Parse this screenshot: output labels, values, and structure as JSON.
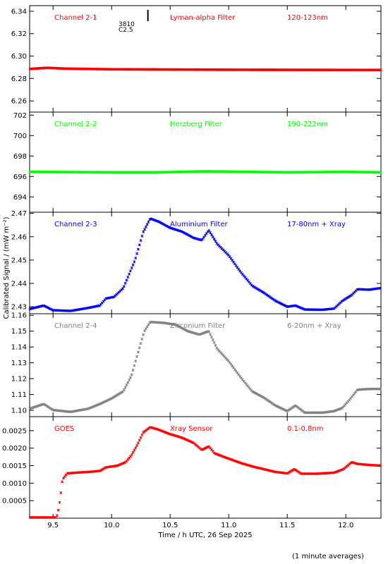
{
  "chart_data": {
    "type": "scatter",
    "ylabel": "Calibrated Signal / (mW m⁻²)",
    "xlabel": "Time / h UTC, 26 Sep 2025",
    "footnote": "(1 minute averages)",
    "xlim": [
      9.3,
      12.3
    ],
    "xticks": [
      9.5,
      10.0,
      10.5,
      11.0,
      11.5,
      12.0
    ],
    "xtick_labels": [
      "9.5",
      "10.0",
      "10.5",
      "11.0",
      "11.5",
      "12.0"
    ],
    "annotation": {
      "line1": "3810",
      "line2": "C2.5",
      "x": 10.31
    },
    "panels": [
      {
        "channel": "Channel 2-1",
        "filter": "Lyman-alpha Filter",
        "band": "120-123nm",
        "color": "#ff0000",
        "ylim": [
          6.25,
          6.345
        ],
        "yticks": [
          6.26,
          6.28,
          6.3,
          6.32,
          6.34
        ],
        "ytick_labels": [
          "6.26",
          "6.28",
          "6.30",
          "6.32",
          "6.34"
        ],
        "points": [
          [
            9.3,
            6.2885
          ],
          [
            9.45,
            6.2895
          ],
          [
            9.6,
            6.2888
          ],
          [
            10.0,
            6.2882
          ],
          [
            11.0,
            6.2878
          ],
          [
            12.3,
            6.2876
          ]
        ]
      },
      {
        "channel": "Channel 2-2",
        "filter": "Herzberg Filter",
        "band": "190-222nm",
        "color": "#00ff00",
        "ylim": [
          692.5,
          702.3
        ],
        "yticks": [
          694,
          696,
          698,
          700,
          702
        ],
        "ytick_labels": [
          "694",
          "696",
          "698",
          "700",
          "702"
        ],
        "points": [
          [
            9.3,
            696.45
          ],
          [
            10.0,
            696.4
          ],
          [
            10.4,
            696.4
          ],
          [
            10.8,
            696.5
          ],
          [
            11.5,
            696.4
          ],
          [
            12.0,
            696.45
          ],
          [
            12.3,
            696.4
          ]
        ]
      },
      {
        "channel": "Channel 2-3",
        "filter": "Aluminium Filter",
        "band": "17-80nm + Xray",
        "color": "#0000ff",
        "ylim": [
          2.427,
          2.4705
        ],
        "yticks": [
          2.43,
          2.44,
          2.45,
          2.46,
          2.47
        ],
        "ytick_labels": [
          "2.43",
          "2.44",
          "2.45",
          "2.46",
          "2.47"
        ],
        "points": [
          [
            9.3,
            2.429
          ],
          [
            9.42,
            2.4305
          ],
          [
            9.5,
            2.4285
          ],
          [
            9.65,
            2.4282
          ],
          [
            9.8,
            2.4295
          ],
          [
            9.9,
            2.4305
          ],
          [
            9.95,
            2.4335
          ],
          [
            10.02,
            2.4342
          ],
          [
            10.1,
            2.438
          ],
          [
            10.2,
            2.45
          ],
          [
            10.27,
            2.462
          ],
          [
            10.33,
            2.4678
          ],
          [
            10.4,
            2.4665
          ],
          [
            10.5,
            2.4638
          ],
          [
            10.6,
            2.4622
          ],
          [
            10.7,
            2.4595
          ],
          [
            10.77,
            2.4585
          ],
          [
            10.83,
            2.4628
          ],
          [
            10.9,
            2.457
          ],
          [
            11.0,
            2.452
          ],
          [
            11.1,
            2.445
          ],
          [
            11.2,
            2.439
          ],
          [
            11.3,
            2.436
          ],
          [
            11.4,
            2.4325
          ],
          [
            11.5,
            2.43
          ],
          [
            11.57,
            2.4305
          ],
          [
            11.65,
            2.4288
          ],
          [
            11.8,
            2.4287
          ],
          [
            11.9,
            2.4292
          ],
          [
            11.97,
            2.4325
          ],
          [
            12.05,
            2.435
          ],
          [
            12.1,
            2.4375
          ],
          [
            12.2,
            2.4373
          ],
          [
            12.3,
            2.438
          ]
        ]
      },
      {
        "channel": "Channel 2-4",
        "filter": "Zirconium Filter",
        "band": "6-20nm + Xray",
        "color": "#808080",
        "ylim": [
          1.096,
          1.161
        ],
        "yticks": [
          1.1,
          1.11,
          1.12,
          1.13,
          1.14,
          1.15,
          1.16
        ],
        "ytick_labels": [
          "1.10",
          "1.11",
          "1.12",
          "1.13",
          "1.14",
          "1.15",
          "1.16"
        ],
        "points": [
          [
            9.3,
            1.101
          ],
          [
            9.42,
            1.104
          ],
          [
            9.5,
            1.1002
          ],
          [
            9.65,
            1.099
          ],
          [
            9.8,
            1.101
          ],
          [
            9.9,
            1.104
          ],
          [
            10.0,
            1.1075
          ],
          [
            10.1,
            1.112
          ],
          [
            10.17,
            1.122
          ],
          [
            10.22,
            1.135
          ],
          [
            10.28,
            1.15
          ],
          [
            10.33,
            1.1558
          ],
          [
            10.45,
            1.1552
          ],
          [
            10.55,
            1.154
          ],
          [
            10.65,
            1.15
          ],
          [
            10.75,
            1.1478
          ],
          [
            10.83,
            1.15
          ],
          [
            10.9,
            1.139
          ],
          [
            11.0,
            1.131
          ],
          [
            11.1,
            1.121
          ],
          [
            11.2,
            1.112
          ],
          [
            11.3,
            1.108
          ],
          [
            11.4,
            1.103
          ],
          [
            11.5,
            1.0995
          ],
          [
            11.57,
            1.103
          ],
          [
            11.65,
            1.0985
          ],
          [
            11.8,
            1.0985
          ],
          [
            11.9,
            1.0995
          ],
          [
            11.97,
            1.1015
          ],
          [
            12.03,
            1.1065
          ],
          [
            12.1,
            1.113
          ],
          [
            12.2,
            1.1135
          ],
          [
            12.3,
            1.1135
          ]
        ]
      },
      {
        "channel": "GOES",
        "filter": "Xray Sensor",
        "band": "0.1-0.8nm",
        "color": "#ff0000",
        "ylim": [
          0.0,
          0.0029
        ],
        "yticks": [
          0.0005,
          0.001,
          0.0015,
          0.002,
          0.0025
        ],
        "ytick_labels": [
          "0.0005",
          "0.0010",
          "0.0015",
          "0.0020",
          "0.0025"
        ],
        "points": [
          [
            9.3,
            2e-05
          ],
          [
            9.53,
            2e-05
          ],
          [
            9.55,
            0.0003
          ],
          [
            9.57,
            0.0008
          ],
          [
            9.58,
            0.0011
          ],
          [
            9.62,
            0.00128
          ],
          [
            9.7,
            0.0013
          ],
          [
            9.8,
            0.00132
          ],
          [
            9.9,
            0.00135
          ],
          [
            9.95,
            0.00145
          ],
          [
            10.05,
            0.0015
          ],
          [
            10.12,
            0.0016
          ],
          [
            10.17,
            0.0018
          ],
          [
            10.22,
            0.0021
          ],
          [
            10.27,
            0.00245
          ],
          [
            10.33,
            0.0026
          ],
          [
            10.4,
            0.00253
          ],
          [
            10.5,
            0.0024
          ],
          [
            10.6,
            0.0023
          ],
          [
            10.7,
            0.00215
          ],
          [
            10.77,
            0.00195
          ],
          [
            10.83,
            0.00205
          ],
          [
            10.88,
            0.00185
          ],
          [
            11.0,
            0.0017
          ],
          [
            11.1,
            0.00158
          ],
          [
            11.2,
            0.00148
          ],
          [
            11.3,
            0.0014
          ],
          [
            11.4,
            0.00132
          ],
          [
            11.5,
            0.00128
          ],
          [
            11.56,
            0.0014
          ],
          [
            11.62,
            0.00127
          ],
          [
            11.75,
            0.00127
          ],
          [
            11.9,
            0.0013
          ],
          [
            11.98,
            0.0014
          ],
          [
            12.05,
            0.0016
          ],
          [
            12.1,
            0.00155
          ],
          [
            12.2,
            0.00152
          ],
          [
            12.3,
            0.0015
          ]
        ]
      }
    ]
  }
}
